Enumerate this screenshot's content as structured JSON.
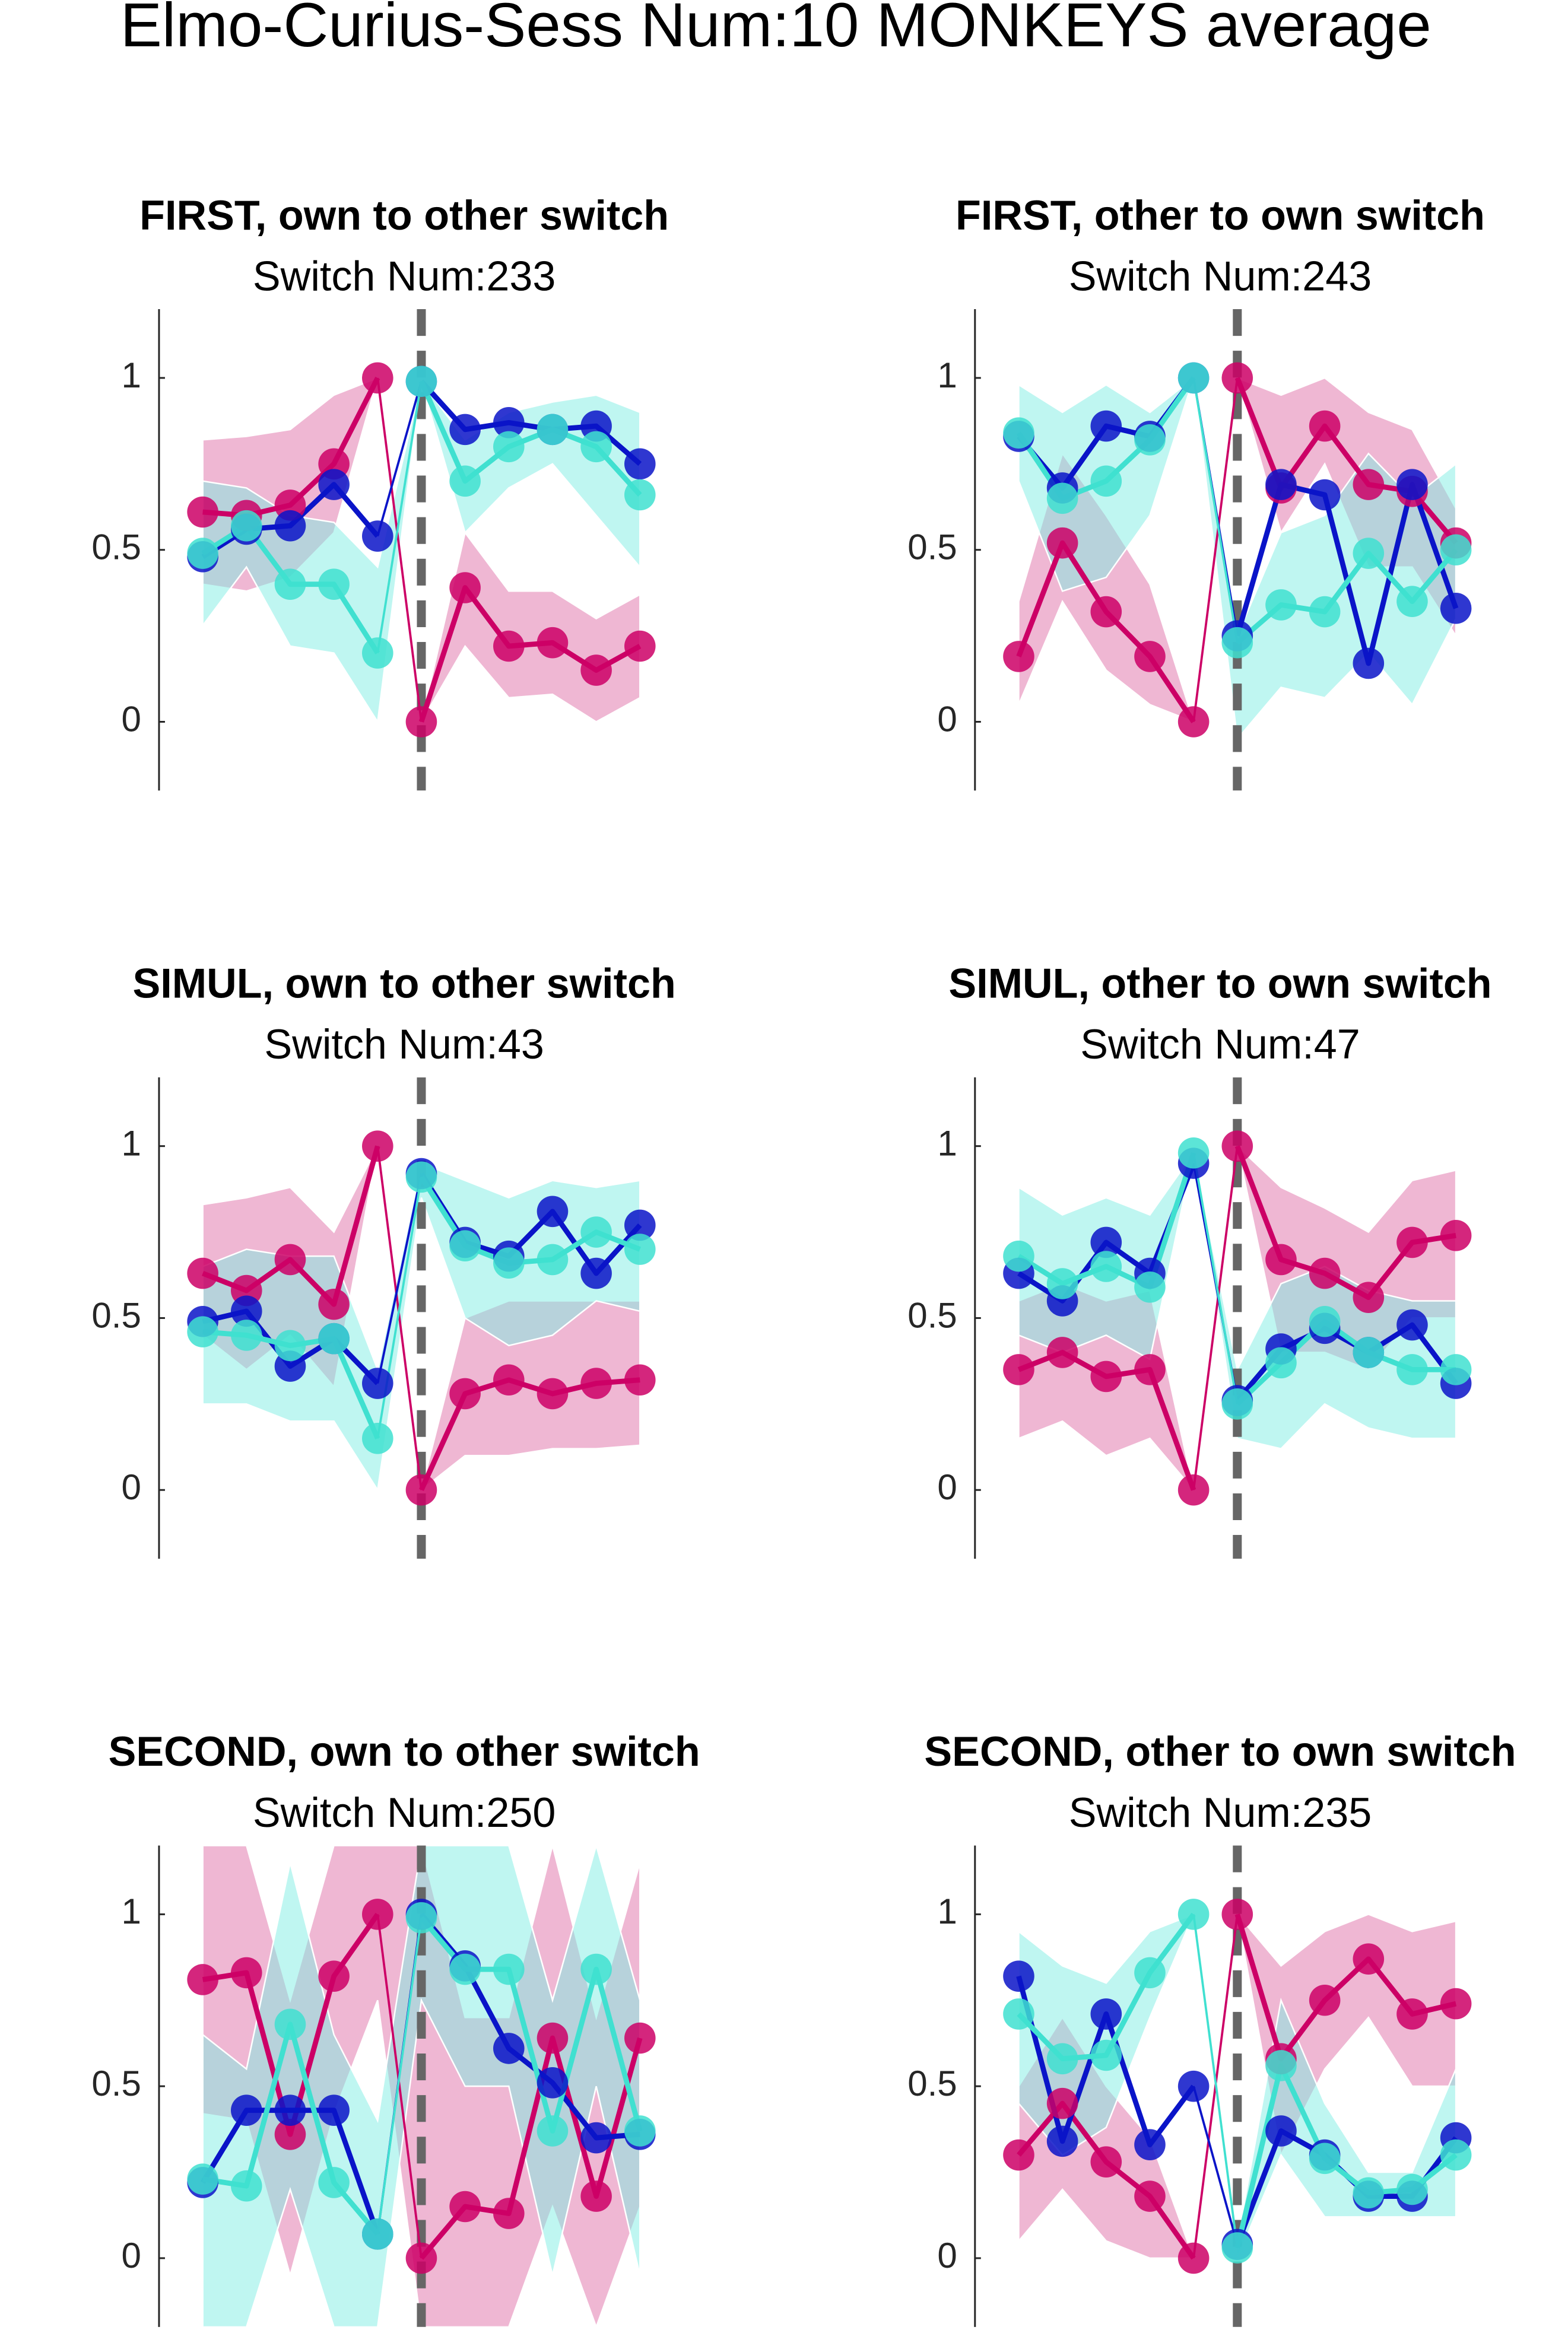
{
  "title": "Elmo-Curius-Sess Num:10 MONKEYS average",
  "chart_data": [
    {
      "type": "line",
      "title": "FIRST, own to other switch",
      "subtitle": "Switch Num:233",
      "x": [
        -5,
        -4,
        -3,
        -2,
        -1,
        0,
        1,
        2,
        3,
        4,
        5
      ],
      "xlim": [
        -6,
        6
      ],
      "ylim": [
        -0.2,
        1.2
      ],
      "yticks": [
        0,
        0.5,
        1
      ],
      "vline": 0,
      "series": [
        {
          "color": "#cc0066",
          "band_color": "#e070a8",
          "values": [
            0.61,
            0.6,
            0.63,
            0.75,
            1,
            0,
            0.39,
            0.22,
            0.23,
            0.15,
            0.22
          ],
          "upper": [
            0.82,
            0.83,
            0.85,
            0.95,
            1,
            0,
            0.55,
            0.38,
            0.38,
            0.3,
            0.37
          ],
          "lower": [
            0.4,
            0.38,
            0.42,
            0.55,
            1,
            0,
            0.22,
            0.07,
            0.08,
            0,
            0.07
          ]
        },
        {
          "color": "#0a14c8",
          "values": [
            0.48,
            0.56,
            0.57,
            0.69,
            0.54,
            0.99,
            0.85,
            0.87,
            0.85,
            0.86,
            0.75
          ]
        },
        {
          "color": "#40e0d0",
          "band_color": "#80eee4",
          "values": [
            0.49,
            0.57,
            0.4,
            0.4,
            0.2,
            0.99,
            0.7,
            0.8,
            0.85,
            0.8,
            0.66
          ],
          "upper": [
            0.7,
            0.68,
            0.6,
            0.58,
            0.45,
            0.99,
            0.82,
            0.9,
            0.93,
            0.95,
            0.9
          ],
          "lower": [
            0.28,
            0.45,
            0.22,
            0.2,
            0,
            0.99,
            0.55,
            0.68,
            0.75,
            0.6,
            0.45
          ]
        }
      ]
    },
    {
      "type": "line",
      "title": "FIRST, other to own switch",
      "subtitle": "Switch Num:243",
      "x": [
        -5,
        -4,
        -3,
        -2,
        -1,
        0,
        1,
        2,
        3,
        4,
        5
      ],
      "xlim": [
        -6,
        6
      ],
      "ylim": [
        -0.2,
        1.2
      ],
      "yticks": [
        0,
        0.5,
        1
      ],
      "vline": 0,
      "series": [
        {
          "color": "#cc0066",
          "band_color": "#e070a8",
          "values": [
            0.19,
            0.52,
            0.32,
            0.19,
            0,
            1,
            0.68,
            0.86,
            0.69,
            0.67,
            0.52
          ],
          "upper": [
            0.35,
            0.78,
            0.6,
            0.4,
            0,
            1,
            0.95,
            1,
            0.9,
            0.85,
            0.62
          ],
          "lower": [
            0.05,
            0.35,
            0.15,
            0.05,
            0,
            1,
            0.55,
            0.75,
            0.45,
            0.45,
            0.25
          ]
        },
        {
          "color": "#0a14c8",
          "values": [
            0.83,
            0.68,
            0.86,
            0.83,
            1,
            0.25,
            0.69,
            0.66,
            0.17,
            0.69,
            0.33
          ]
        },
        {
          "color": "#40e0d0",
          "band_color": "#80eee4",
          "values": [
            0.84,
            0.65,
            0.7,
            0.82,
            1,
            0.23,
            0.34,
            0.32,
            0.49,
            0.35,
            0.5
          ],
          "upper": [
            0.98,
            0.9,
            0.98,
            0.9,
            1,
            0.25,
            0.55,
            0.6,
            0.78,
            0.65,
            0.75
          ],
          "lower": [
            0.7,
            0.38,
            0.42,
            0.6,
            1,
            -0.05,
            0.1,
            0.07,
            0.2,
            0.05,
            0.3
          ]
        }
      ]
    },
    {
      "type": "line",
      "title": "SIMUL, own to other switch",
      "subtitle": "Switch Num:43",
      "x": [
        -5,
        -4,
        -3,
        -2,
        -1,
        0,
        1,
        2,
        3,
        4,
        5
      ],
      "xlim": [
        -6,
        6
      ],
      "ylim": [
        -0.2,
        1.2
      ],
      "yticks": [
        0,
        0.5,
        1
      ],
      "vline": 0,
      "series": [
        {
          "color": "#cc0066",
          "band_color": "#e070a8",
          "values": [
            0.63,
            0.58,
            0.67,
            0.54,
            1,
            0,
            0.28,
            0.32,
            0.28,
            0.31,
            0.32
          ],
          "upper": [
            0.83,
            0.85,
            0.88,
            0.75,
            1,
            0,
            0.5,
            0.55,
            0.55,
            0.55,
            0.55
          ],
          "lower": [
            0.45,
            0.35,
            0.45,
            0.3,
            1,
            0,
            0.1,
            0.1,
            0.12,
            0.12,
            0.13
          ]
        },
        {
          "color": "#0a14c8",
          "values": [
            0.49,
            0.52,
            0.36,
            0.44,
            0.31,
            0.92,
            0.72,
            0.68,
            0.81,
            0.63,
            0.77
          ]
        },
        {
          "color": "#40e0d0",
          "band_color": "#80eee4",
          "values": [
            0.46,
            0.45,
            0.42,
            0.44,
            0.15,
            0.91,
            0.71,
            0.66,
            0.67,
            0.75,
            0.7
          ],
          "upper": [
            0.65,
            0.7,
            0.68,
            0.68,
            0.35,
            0.95,
            0.9,
            0.85,
            0.9,
            0.88,
            0.9
          ],
          "lower": [
            0.25,
            0.25,
            0.2,
            0.2,
            0,
            0.85,
            0.5,
            0.42,
            0.45,
            0.55,
            0.52
          ]
        }
      ]
    },
    {
      "type": "line",
      "title": "SIMUL, other to own switch",
      "subtitle": "Switch Num:47",
      "x": [
        -5,
        -4,
        -3,
        -2,
        -1,
        0,
        1,
        2,
        3,
        4,
        5
      ],
      "xlim": [
        -6,
        6
      ],
      "ylim": [
        -0.2,
        1.2
      ],
      "yticks": [
        0,
        0.5,
        1
      ],
      "vline": 0,
      "series": [
        {
          "color": "#cc0066",
          "band_color": "#e070a8",
          "values": [
            0.35,
            0.4,
            0.33,
            0.35,
            0,
            1,
            0.67,
            0.63,
            0.56,
            0.72,
            0.74
          ],
          "upper": [
            0.55,
            0.6,
            0.55,
            0.58,
            0,
            1,
            0.88,
            0.82,
            0.75,
            0.9,
            0.93
          ],
          "lower": [
            0.15,
            0.2,
            0.1,
            0.15,
            0,
            1,
            0.4,
            0.4,
            0.35,
            0.5,
            0.5
          ]
        },
        {
          "color": "#0a14c8",
          "values": [
            0.63,
            0.55,
            0.72,
            0.63,
            0.95,
            0.26,
            0.41,
            0.47,
            0.4,
            0.48,
            0.31
          ]
        },
        {
          "color": "#40e0d0",
          "band_color": "#80eee4",
          "values": [
            0.68,
            0.6,
            0.65,
            0.59,
            0.98,
            0.25,
            0.37,
            0.49,
            0.4,
            0.35,
            0.35
          ],
          "upper": [
            0.88,
            0.8,
            0.85,
            0.8,
            0.98,
            0.35,
            0.6,
            0.65,
            0.58,
            0.55,
            0.55
          ],
          "lower": [
            0.45,
            0.4,
            0.45,
            0.38,
            0.98,
            0.15,
            0.12,
            0.25,
            0.18,
            0.15,
            0.15
          ]
        }
      ]
    },
    {
      "type": "line",
      "title": "SECOND, own to other switch",
      "subtitle": "Switch Num:250",
      "x": [
        -5,
        -4,
        -3,
        -2,
        -1,
        0,
        1,
        2,
        3,
        4,
        5
      ],
      "xlim": [
        -6,
        6
      ],
      "ylim": [
        -0.2,
        1.2
      ],
      "yticks": [
        0,
        0.5,
        1
      ],
      "vline": 0,
      "series": [
        {
          "color": "#cc0066",
          "band_color": "#e070a8",
          "values": [
            0.81,
            0.83,
            0.36,
            0.82,
            1,
            0,
            0.15,
            0.13,
            0.64,
            0.18,
            0.64
          ],
          "upper": [
            1.2,
            1.2,
            0.75,
            1.2,
            1.2,
            1.2,
            0.7,
            0.7,
            1.2,
            0.7,
            1.15
          ],
          "lower": [
            0.42,
            0.4,
            -0.05,
            0.42,
            0.75,
            -0.2,
            -0.2,
            -0.2,
            0.15,
            -0.2,
            0.15
          ]
        },
        {
          "color": "#0a14c8",
          "values": [
            0.22,
            0.43,
            0.43,
            0.43,
            0.07,
            1,
            0.85,
            0.61,
            0.51,
            0.35,
            0.36
          ]
        },
        {
          "color": "#40e0d0",
          "band_color": "#80eee4",
          "values": [
            0.23,
            0.21,
            0.68,
            0.22,
            0.07,
            0.99,
            0.84,
            0.84,
            0.37,
            0.84,
            0.37
          ],
          "upper": [
            0.65,
            0.55,
            1.15,
            0.65,
            0.4,
            1.2,
            1.2,
            1.2,
            0.75,
            1.2,
            0.75
          ],
          "lower": [
            -0.2,
            -0.2,
            0.2,
            -0.2,
            -0.2,
            0.75,
            0.5,
            0.5,
            -0.05,
            0.5,
            -0.05
          ]
        }
      ]
    },
    {
      "type": "line",
      "title": "SECOND, other to own switch",
      "subtitle": "Switch Num:235",
      "x": [
        -5,
        -4,
        -3,
        -2,
        -1,
        0,
        1,
        2,
        3,
        4,
        5
      ],
      "xlim": [
        -6,
        6
      ],
      "ylim": [
        -0.2,
        1.2
      ],
      "yticks": [
        0,
        0.5,
        1
      ],
      "vline": 0,
      "series": [
        {
          "color": "#cc0066",
          "band_color": "#e070a8",
          "values": [
            0.3,
            0.45,
            0.28,
            0.18,
            0,
            1,
            0.58,
            0.75,
            0.87,
            0.71,
            0.74
          ],
          "upper": [
            0.5,
            0.7,
            0.5,
            0.35,
            0,
            1,
            0.85,
            0.95,
            1,
            0.95,
            0.98
          ],
          "lower": [
            0.05,
            0.2,
            0.05,
            0,
            0,
            1,
            0.3,
            0.55,
            0.7,
            0.5,
            0.5
          ]
        },
        {
          "color": "#0a14c8",
          "values": [
            0.82,
            0.34,
            0.71,
            0.33,
            0.5,
            0.04,
            0.37,
            0.3,
            0.18,
            0.18,
            0.35
          ]
        },
        {
          "color": "#40e0d0",
          "band_color": "#80eee4",
          "values": [
            0.71,
            0.58,
            0.59,
            0.83,
            1,
            0.03,
            0.56,
            0.29,
            0.19,
            0.2,
            0.3
          ],
          "upper": [
            0.95,
            0.85,
            0.8,
            0.95,
            1,
            0.05,
            0.75,
            0.45,
            0.25,
            0.25,
            0.55
          ],
          "lower": [
            0.45,
            0.3,
            0.38,
            0.7,
            1,
            0,
            0.3,
            0.12,
            0.12,
            0.12,
            0.12
          ]
        }
      ]
    }
  ]
}
